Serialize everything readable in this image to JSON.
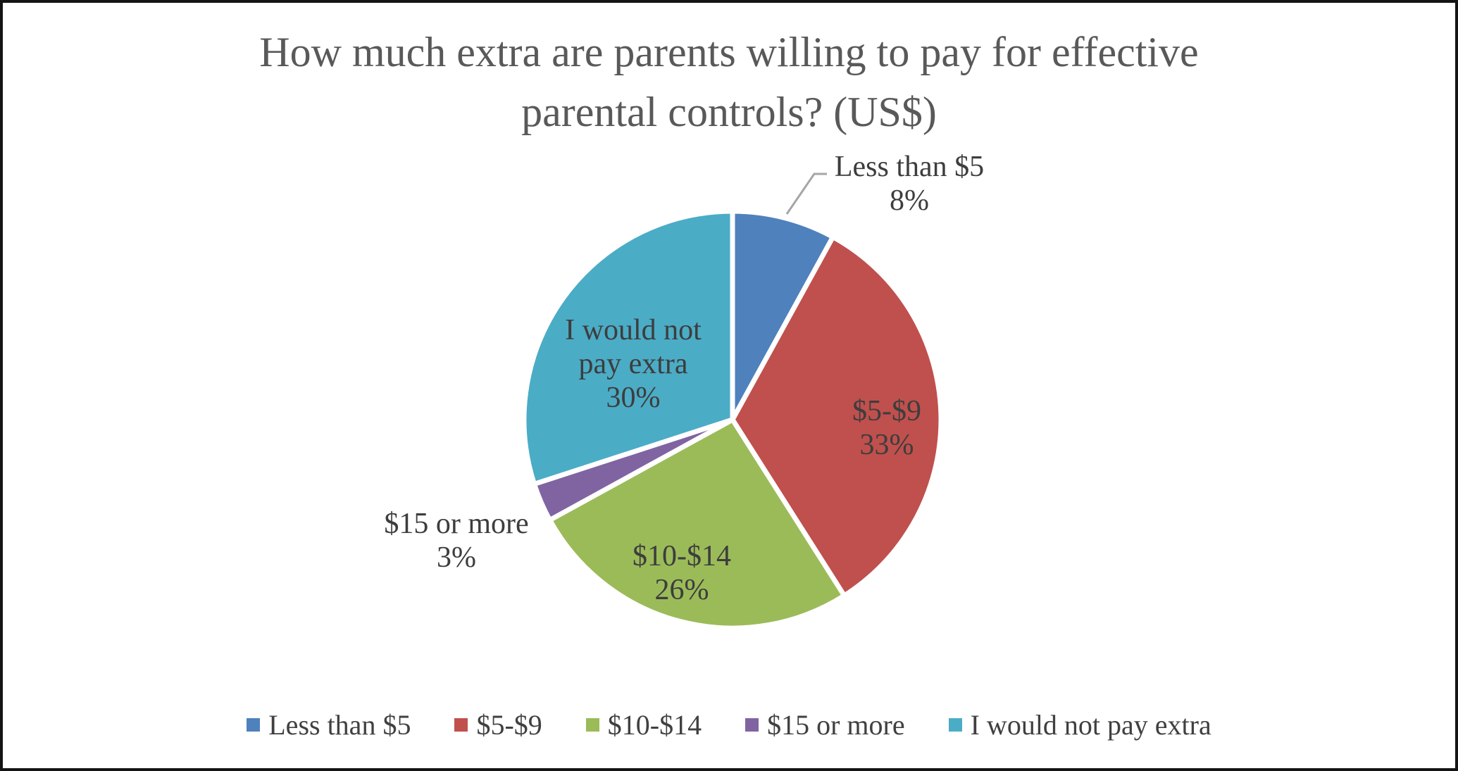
{
  "figure": {
    "background_color": "#FFFFFF",
    "border_color": "#141414"
  },
  "chart_data": {
    "type": "pie",
    "title": "How much extra are parents willing to pay for effective parental controls? (US$)",
    "title_lines": [
      "How much extra are parents willing to pay for effective",
      "parental controls? (US$)"
    ],
    "categories": [
      "Less than $5",
      "$5-$9",
      "$10-$14",
      "$15 or more",
      "I would not pay extra"
    ],
    "values": [
      8,
      33,
      26,
      3,
      30
    ],
    "unit": "percent",
    "colors": [
      "#4F81BD",
      "#C0504D",
      "#9BBB59",
      "#8064A2",
      "#4BACC6"
    ],
    "start_angle_deg": 0,
    "direction": "clockwise",
    "grid": false,
    "legend_position": "bottom",
    "title_color": "#595959",
    "label_color": "#3D3D3D",
    "legend_text_color": "#404040",
    "leader_line_color": "#A6A6A6",
    "slice_border_color": "#FFFFFF",
    "slice_labels": [
      {
        "placement": "outside",
        "leader_line": true,
        "lines": [
          "Less than $5",
          "8%"
        ]
      },
      {
        "placement": "inside",
        "leader_line": false,
        "lines": [
          "$5-$9",
          "33%"
        ]
      },
      {
        "placement": "inside",
        "leader_line": false,
        "lines": [
          "$10-$14",
          "26%"
        ]
      },
      {
        "placement": "outside",
        "leader_line": false,
        "lines": [
          "$15 or more",
          "3%"
        ]
      },
      {
        "placement": "inside",
        "leader_line": false,
        "lines": [
          "I would not",
          "pay extra",
          "30%"
        ]
      }
    ]
  }
}
